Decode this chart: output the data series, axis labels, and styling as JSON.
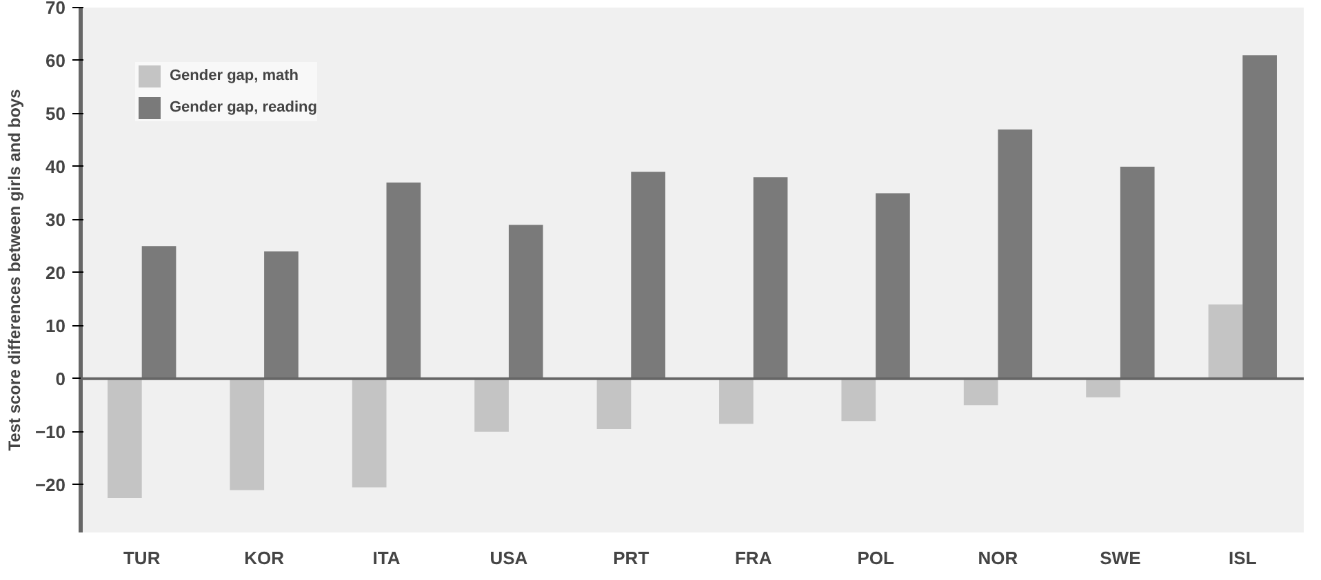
{
  "chart_data": {
    "type": "bar",
    "ylabel": "Test score differences between girls and boys",
    "categories": [
      "TUR",
      "KOR",
      "ITA",
      "USA",
      "PRT",
      "FRA",
      "POL",
      "NOR",
      "SWE",
      "ISL"
    ],
    "series": [
      {
        "name": "Gender gap, math",
        "color": "#c4c4c4",
        "values": [
          -22.5,
          -21,
          -20.5,
          -10,
          -9.5,
          -8.5,
          -8,
          -5,
          -3.5,
          14
        ]
      },
      {
        "name": "Gender gap, reading",
        "color": "#7a7a7a",
        "values": [
          25,
          24,
          37,
          29,
          39,
          38,
          35,
          47,
          40,
          61
        ]
      }
    ],
    "ylim": [
      -29,
      70
    ],
    "yticks": [
      -20,
      -10,
      0,
      10,
      20,
      30,
      40,
      50,
      60,
      70
    ],
    "legend": "top left"
  }
}
